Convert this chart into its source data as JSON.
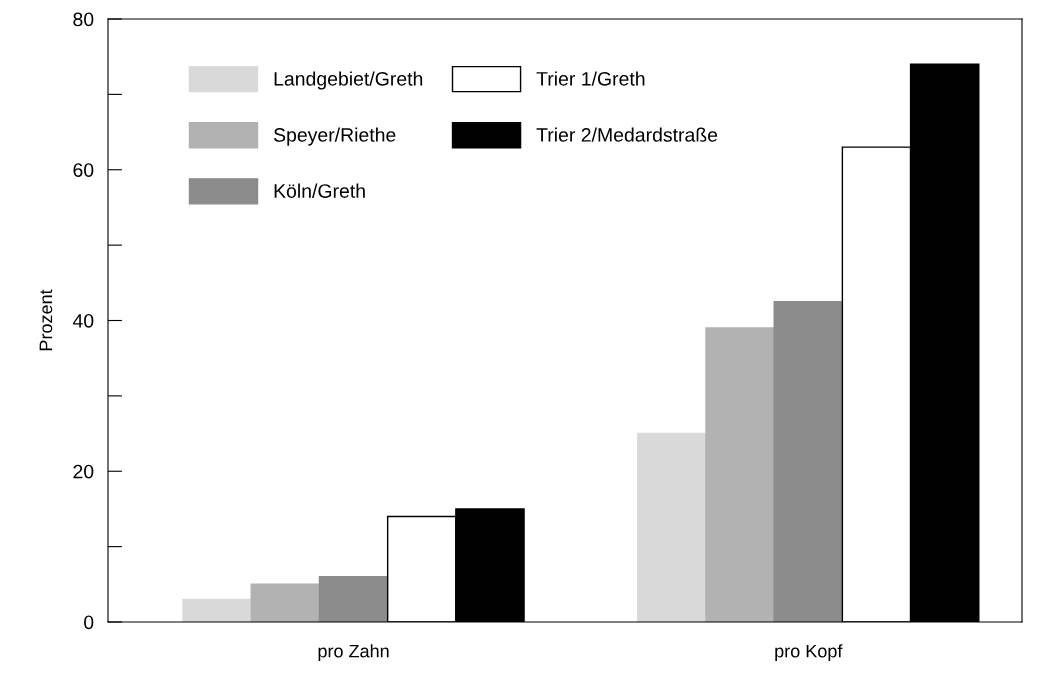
{
  "chart_data": {
    "type": "bar",
    "ylabel": "Prozent",
    "categories": [
      "pro Zahn",
      "pro Kopf"
    ],
    "series": [
      {
        "name": "Landgebiet/Greth",
        "color": "#d9d9d9",
        "values": [
          3,
          25
        ]
      },
      {
        "name": "Speyer/Riethe",
        "color": "#b2b2b2",
        "values": [
          5,
          39
        ]
      },
      {
        "name": "Köln/Greth",
        "color": "#8c8c8c",
        "values": [
          6,
          42.5
        ]
      },
      {
        "name": "Trier 1/Greth",
        "color": "#ffffff",
        "values": [
          14,
          63
        ]
      },
      {
        "name": "Trier 2/Medardstraße",
        "color": "#000000",
        "values": [
          15,
          74
        ]
      }
    ],
    "ylim": [
      0,
      80
    ],
    "yticks": [
      0,
      {
        "value": 10,
        "label": null
      },
      20,
      {
        "value": 30,
        "label": null
      },
      40,
      {
        "value": 50,
        "label": null
      },
      60,
      {
        "value": 70,
        "label": null
      },
      80
    ],
    "grid": false,
    "legend": "top left"
  }
}
